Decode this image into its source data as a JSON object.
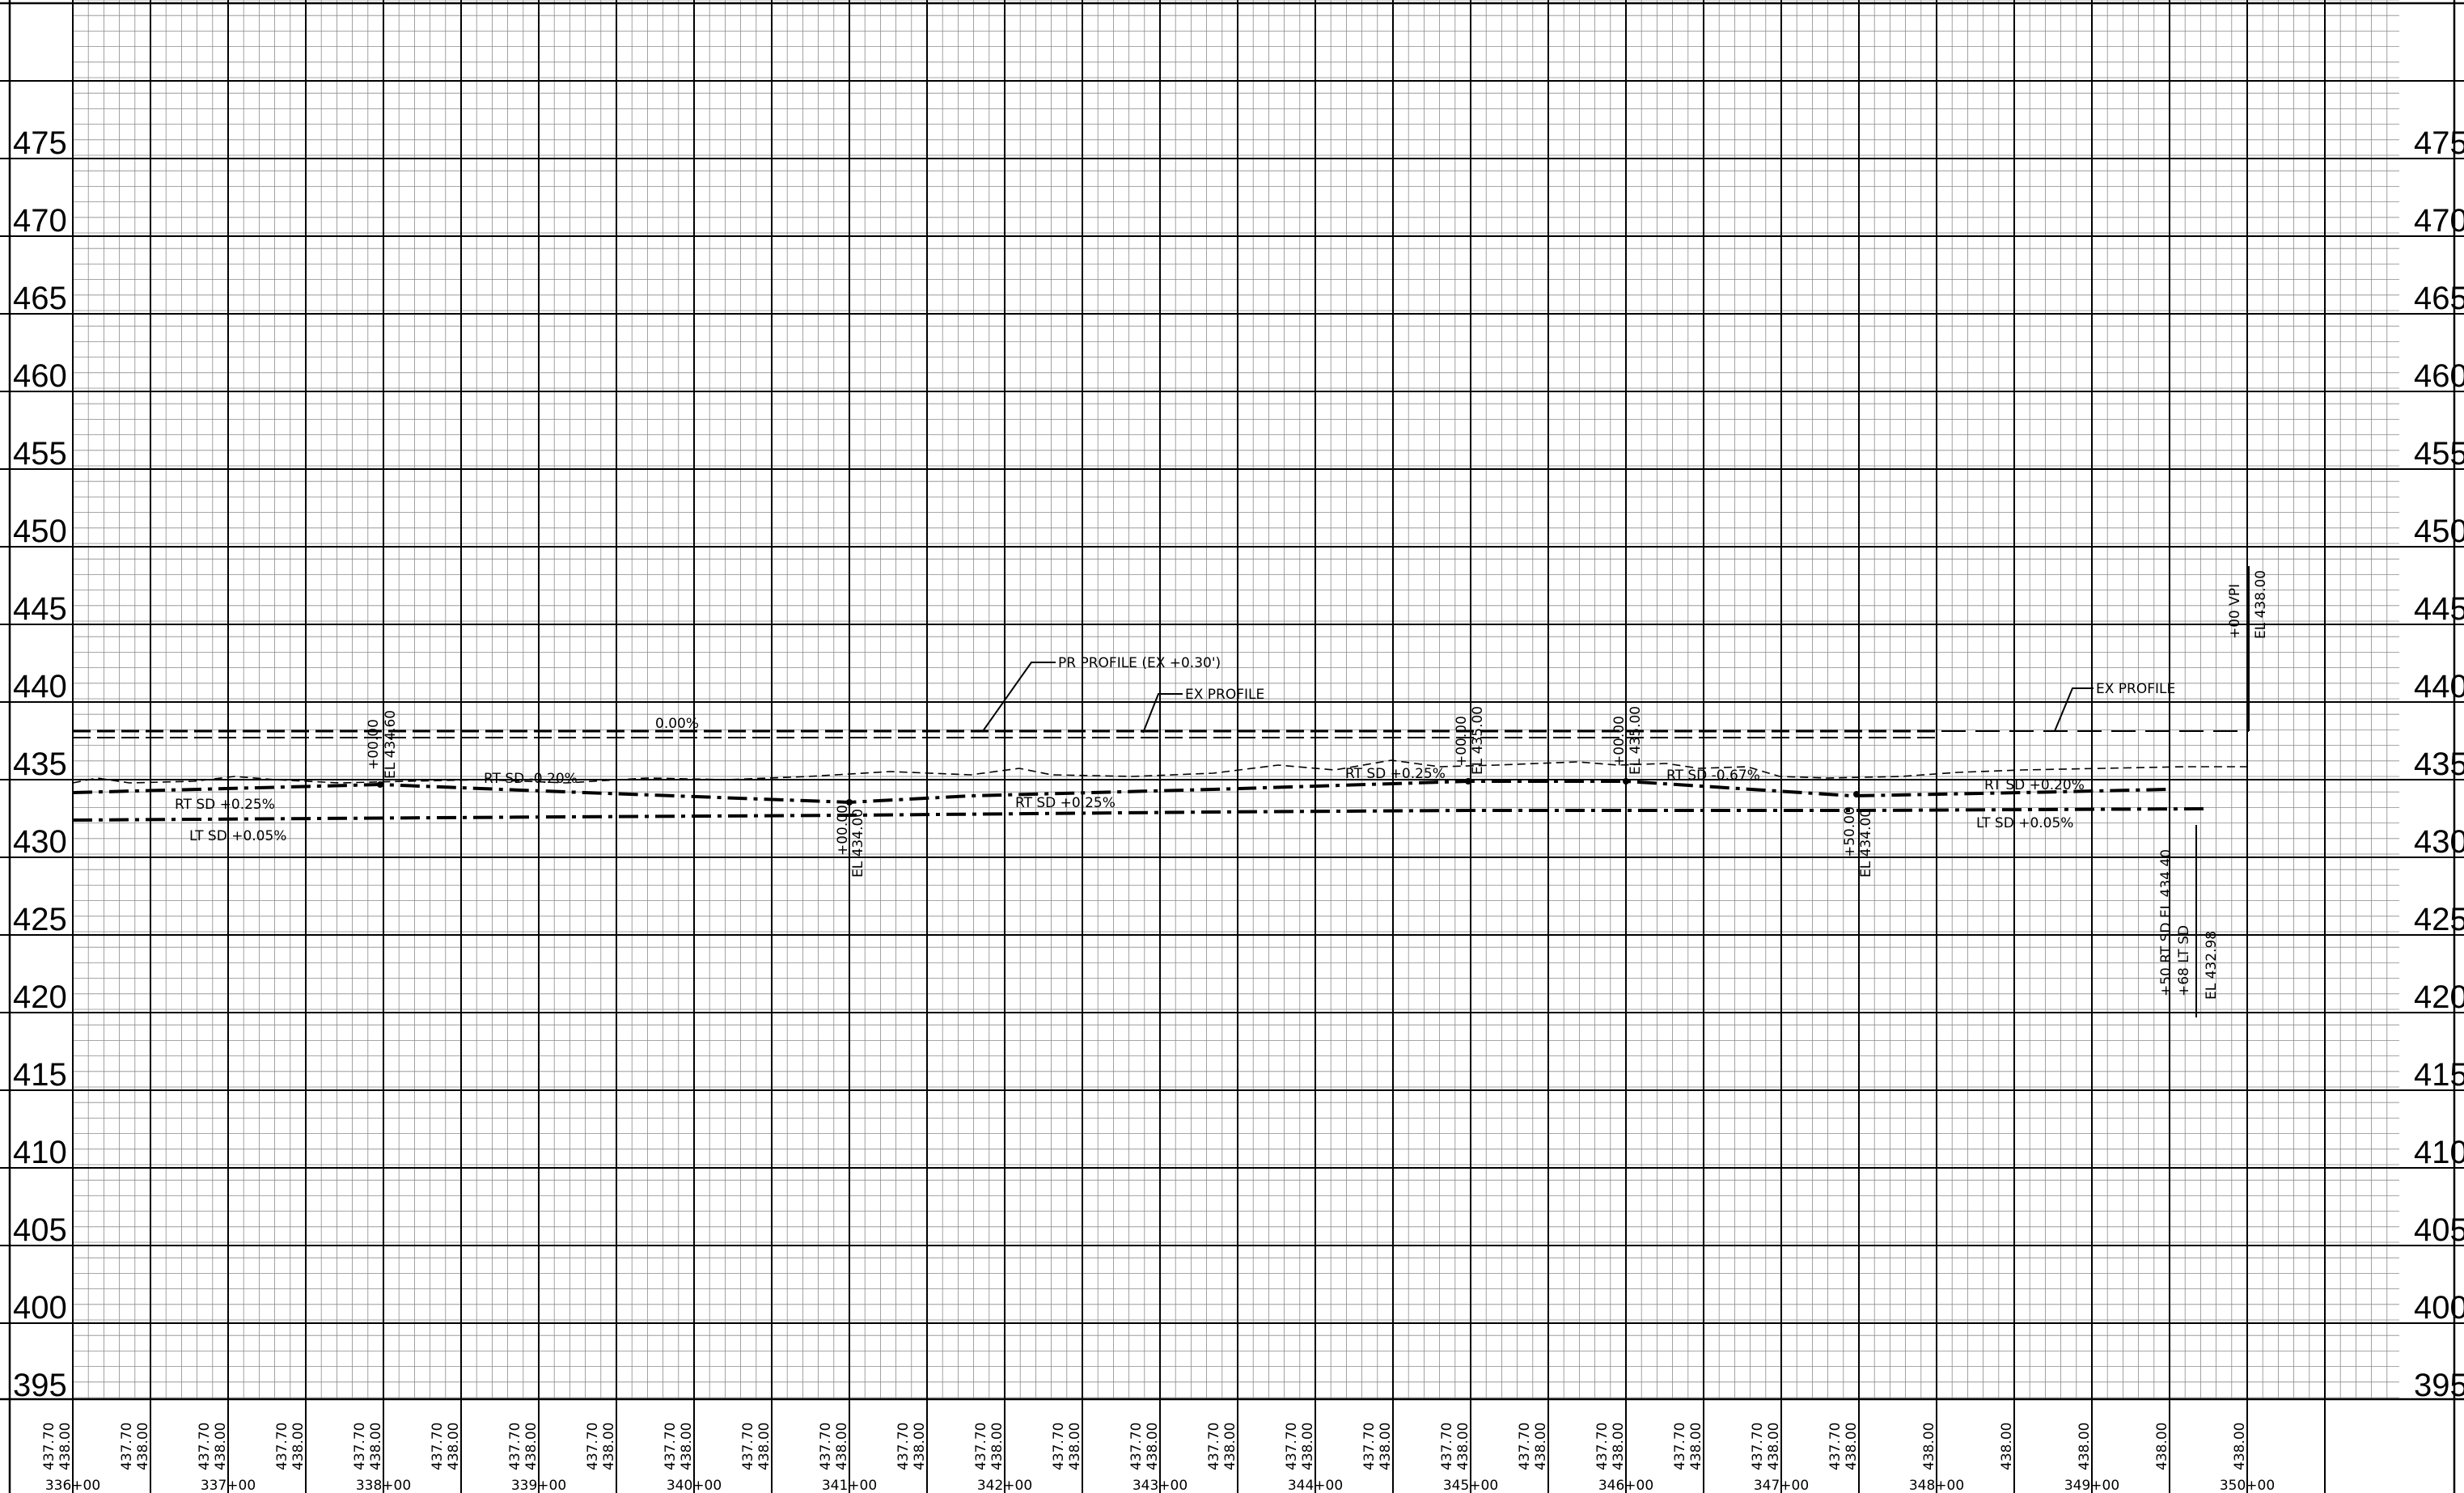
{
  "sheet": {
    "elevation_labels": [
      "475",
      "470",
      "465",
      "460",
      "455",
      "450",
      "445",
      "440",
      "435",
      "430",
      "425",
      "420",
      "415",
      "410",
      "405",
      "400",
      "395"
    ],
    "station_labels": [
      "336+00",
      "337+00",
      "338+00",
      "339+00",
      "340+00",
      "341+00",
      "342+00",
      "343+00",
      "344+00",
      "345+00",
      "346+00",
      "347+00",
      "348+00",
      "349+00",
      "350+00"
    ],
    "bottom_elevations": [
      [
        "437.70",
        "438.00"
      ],
      [
        "437.70",
        "438.00"
      ],
      [
        "437.70",
        "438.00"
      ],
      [
        "437.70",
        "438.00"
      ],
      [
        "437.70",
        "438.00"
      ],
      [
        "437.70",
        "438.00"
      ],
      [
        "437.70",
        "438.00"
      ],
      [
        "437.70",
        "438.00"
      ],
      [
        "437.70",
        "438.00"
      ],
      [
        "437.70",
        "438.00"
      ],
      [
        "437.70",
        "438.00"
      ],
      [
        "437.70",
        "438.00"
      ],
      [
        "437.70",
        "438.00"
      ],
      [
        "437.70",
        "438.00"
      ],
      [
        "437.70",
        "438.00"
      ],
      [
        "437.70",
        "438.00"
      ],
      [
        "437.70",
        "438.00"
      ],
      [
        "437.70",
        "438.00"
      ],
      [
        "437.70",
        "438.00"
      ],
      [
        "437.70",
        "438.00"
      ],
      [
        "437.70",
        "438.00"
      ],
      [
        "437.70",
        "438.00"
      ],
      [
        "437.70",
        "438.00"
      ],
      [
        "437.70",
        "438.00"
      ],
      [
        "438.00"
      ],
      [
        "438.00"
      ],
      [
        "438.00"
      ],
      [
        "438.00"
      ],
      [
        "438.00"
      ]
    ],
    "annotations": {
      "grade_0": "0.00%",
      "pr_profile": "PR PROFILE (EX +0.30')",
      "ex_profile_1": "EX PROFILE",
      "ex_profile_2": "EX PROFILE",
      "rt_sd_1": "RT SD +0.25%",
      "lt_sd_1": "LT SD +0.05%",
      "rt_sd_2": "RT SD -0.20%",
      "rt_sd_3": "RT SD +0.25%",
      "rt_sd_4": "RT SD +0.25%",
      "rt_sd_5": "RT SD -0.67%",
      "rt_sd_6": "RT SD +0.20%",
      "lt_sd_2": "LT SD +0.05%",
      "pt1_sta": "+00.00",
      "pt1_el": "EL 434.60",
      "pt2_sta": "+00.00",
      "pt2_el": "EL 434.00",
      "pt3_sta": "+00.00",
      "pt3_el": "EL 435.00",
      "pt4_sta": "+00.00",
      "pt4_el": "EL 435.00",
      "pt5_sta": "+50.00",
      "pt5_el": "EL 434.00",
      "end_rt": "+50 RT SD EL 434.40",
      "end_lt": "+68 LT SD",
      "end_lt_el": "EL 432.98",
      "vpi_sta": "+00 VPI",
      "vpi_el": "EL 438.00"
    }
  },
  "colors": {
    "line": "#000000",
    "minor_grid": "#8a8a8a",
    "background": "#ffffff"
  }
}
